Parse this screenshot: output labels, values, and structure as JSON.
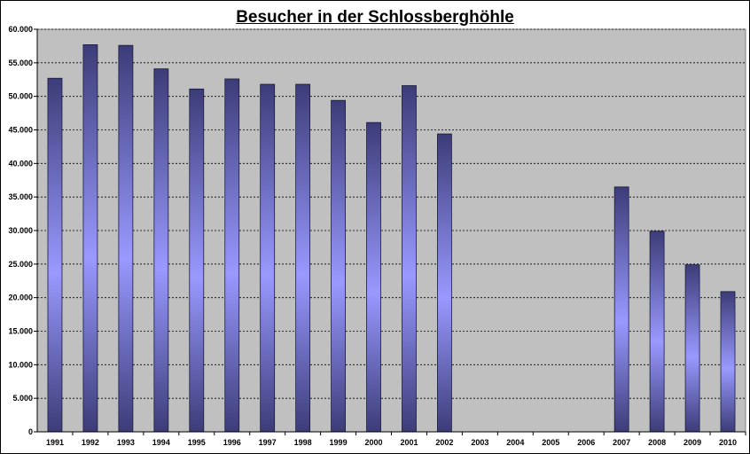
{
  "chart_data": {
    "type": "bar",
    "title": "Besucher in der Schlossberghöhle",
    "xlabel": "",
    "ylabel": "",
    "categories": [
      "1991",
      "1992",
      "1993",
      "1994",
      "1995",
      "1996",
      "1997",
      "1998",
      "1999",
      "2000",
      "2001",
      "2002",
      "2003",
      "2004",
      "2005",
      "2006",
      "2007",
      "2008",
      "2009",
      "2010"
    ],
    "values": [
      52700,
      57700,
      57600,
      54100,
      51100,
      52600,
      51800,
      51800,
      49400,
      46100,
      51600,
      44400,
      null,
      null,
      null,
      null,
      36500,
      29900,
      24900,
      20900
    ],
    "ylim": [
      0,
      60000
    ],
    "yticks": [
      "0",
      "5.000",
      "10.000",
      "15.000",
      "20.000",
      "25.000",
      "30.000",
      "35.000",
      "40.000",
      "45.000",
      "50.000",
      "55.000",
      "60.000"
    ],
    "grid": true,
    "legend": "none",
    "colors": {
      "plot_bg": "#c0c0c0",
      "bar_edge": "#3c3c78",
      "bar_center": "#9999ff",
      "grid": "#000000"
    }
  }
}
